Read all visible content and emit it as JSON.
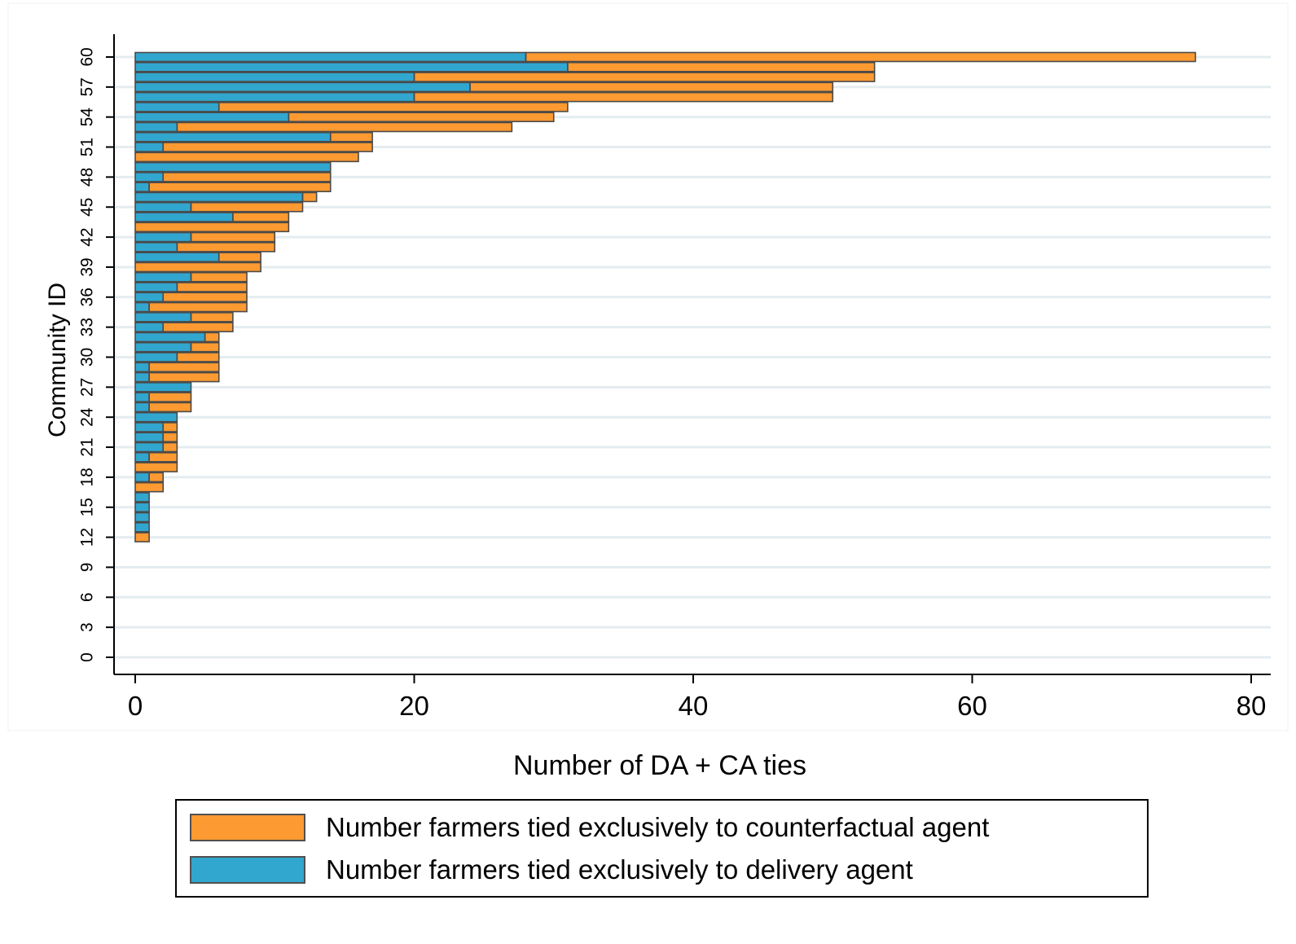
{
  "chart_data": {
    "type": "bar",
    "orientation": "horizontal",
    "stacked": true,
    "xlabel": "Number of DA + CA ties",
    "ylabel": "Community ID",
    "xlim": [
      0,
      80
    ],
    "ylim": [
      0,
      61
    ],
    "x_ticks": [
      "0",
      "20",
      "40",
      "60",
      "80"
    ],
    "y_ticks": [
      "0",
      "3",
      "6",
      "9",
      "12",
      "15",
      "18",
      "21",
      "24",
      "27",
      "30",
      "33",
      "36",
      "39",
      "42",
      "45",
      "48",
      "51",
      "54",
      "57",
      "60"
    ],
    "grid": true,
    "categories": [
      12,
      13,
      14,
      15,
      16,
      17,
      18,
      19,
      20,
      21,
      22,
      23,
      24,
      25,
      26,
      27,
      28,
      29,
      30,
      31,
      32,
      33,
      34,
      35,
      36,
      37,
      38,
      39,
      40,
      41,
      42,
      43,
      44,
      45,
      46,
      47,
      48,
      49,
      50,
      51,
      52,
      53,
      54,
      55,
      56,
      57,
      58,
      59,
      60
    ],
    "series": [
      {
        "name": "Number farmers tied exclusively to delivery agent",
        "color": "#31a6cf",
        "values": [
          0,
          1,
          1,
          1,
          1,
          0,
          1,
          0,
          1,
          2,
          2,
          2,
          3,
          1,
          1,
          4,
          1,
          1,
          3,
          4,
          5,
          2,
          4,
          1,
          2,
          3,
          4,
          0,
          6,
          3,
          4,
          0,
          7,
          4,
          12,
          1,
          2,
          14,
          0,
          2,
          14,
          3,
          11,
          6,
          20,
          24,
          20,
          31,
          28
        ]
      },
      {
        "name": "Number farmers tied exclusively to counterfactual agent",
        "color": "#fd9a31",
        "values": [
          1,
          0,
          0,
          0,
          0,
          2,
          1,
          3,
          2,
          1,
          1,
          1,
          0,
          3,
          3,
          0,
          5,
          5,
          3,
          2,
          1,
          5,
          3,
          7,
          6,
          5,
          4,
          9,
          3,
          7,
          6,
          11,
          4,
          8,
          1,
          13,
          12,
          0,
          16,
          15,
          3,
          24,
          19,
          25,
          30,
          26,
          33,
          22,
          48
        ]
      }
    ],
    "legend": {
      "position": "bottom",
      "entries": [
        "Number farmers tied exclusively to counterfactual agent",
        "Number farmers tied exclusively to delivery agent"
      ]
    },
    "colors": {
      "bar_outline": "#a03040",
      "grid": "#e4ecf0",
      "axis": "#000000"
    }
  }
}
